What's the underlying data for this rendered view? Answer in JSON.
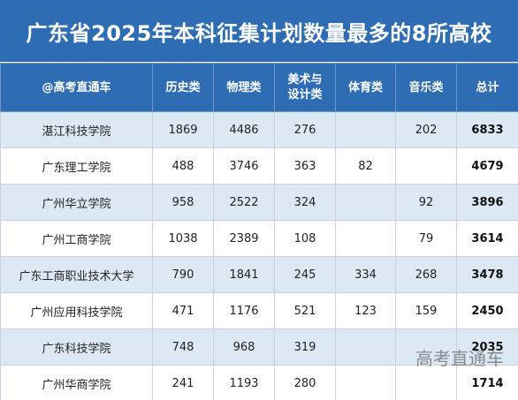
{
  "title": "广东省2025年本科征集计划数量最多的8所高校",
  "headers": {
    "school": "@高考直通车",
    "history": "历史类",
    "physics": "物理类",
    "art_line1": "美术与",
    "art_line2": "设计类",
    "sports": "体育类",
    "music": "音乐类",
    "total": "总计"
  },
  "rows": [
    {
      "name": "湛江科技学院",
      "history": "1869",
      "physics": "4486",
      "art": "276",
      "sports": "",
      "music": "202",
      "total": "6833"
    },
    {
      "name": "广东理工学院",
      "history": "488",
      "physics": "3746",
      "art": "363",
      "sports": "82",
      "music": "",
      "total": "4679"
    },
    {
      "name": "广州华立学院",
      "history": "958",
      "physics": "2522",
      "art": "324",
      "sports": "",
      "music": "92",
      "total": "3896"
    },
    {
      "name": "广州工商学院",
      "history": "1038",
      "physics": "2389",
      "art": "108",
      "sports": "",
      "music": "79",
      "total": "3614"
    },
    {
      "name": "广东工商职业技术大学",
      "history": "790",
      "physics": "1841",
      "art": "245",
      "sports": "334",
      "music": "268",
      "total": "3478"
    },
    {
      "name": "广州应用科技学院",
      "history": "471",
      "physics": "1176",
      "art": "521",
      "sports": "123",
      "music": "159",
      "total": "2450"
    },
    {
      "name": "广东科技学院",
      "history": "748",
      "physics": "968",
      "art": "319",
      "sports": "",
      "music": "",
      "total": "2035"
    },
    {
      "name": "广州华商学院",
      "history": "241",
      "physics": "1193",
      "art": "280",
      "sports": "",
      "music": "",
      "total": "1714"
    }
  ],
  "watermark": "高考直通车"
}
